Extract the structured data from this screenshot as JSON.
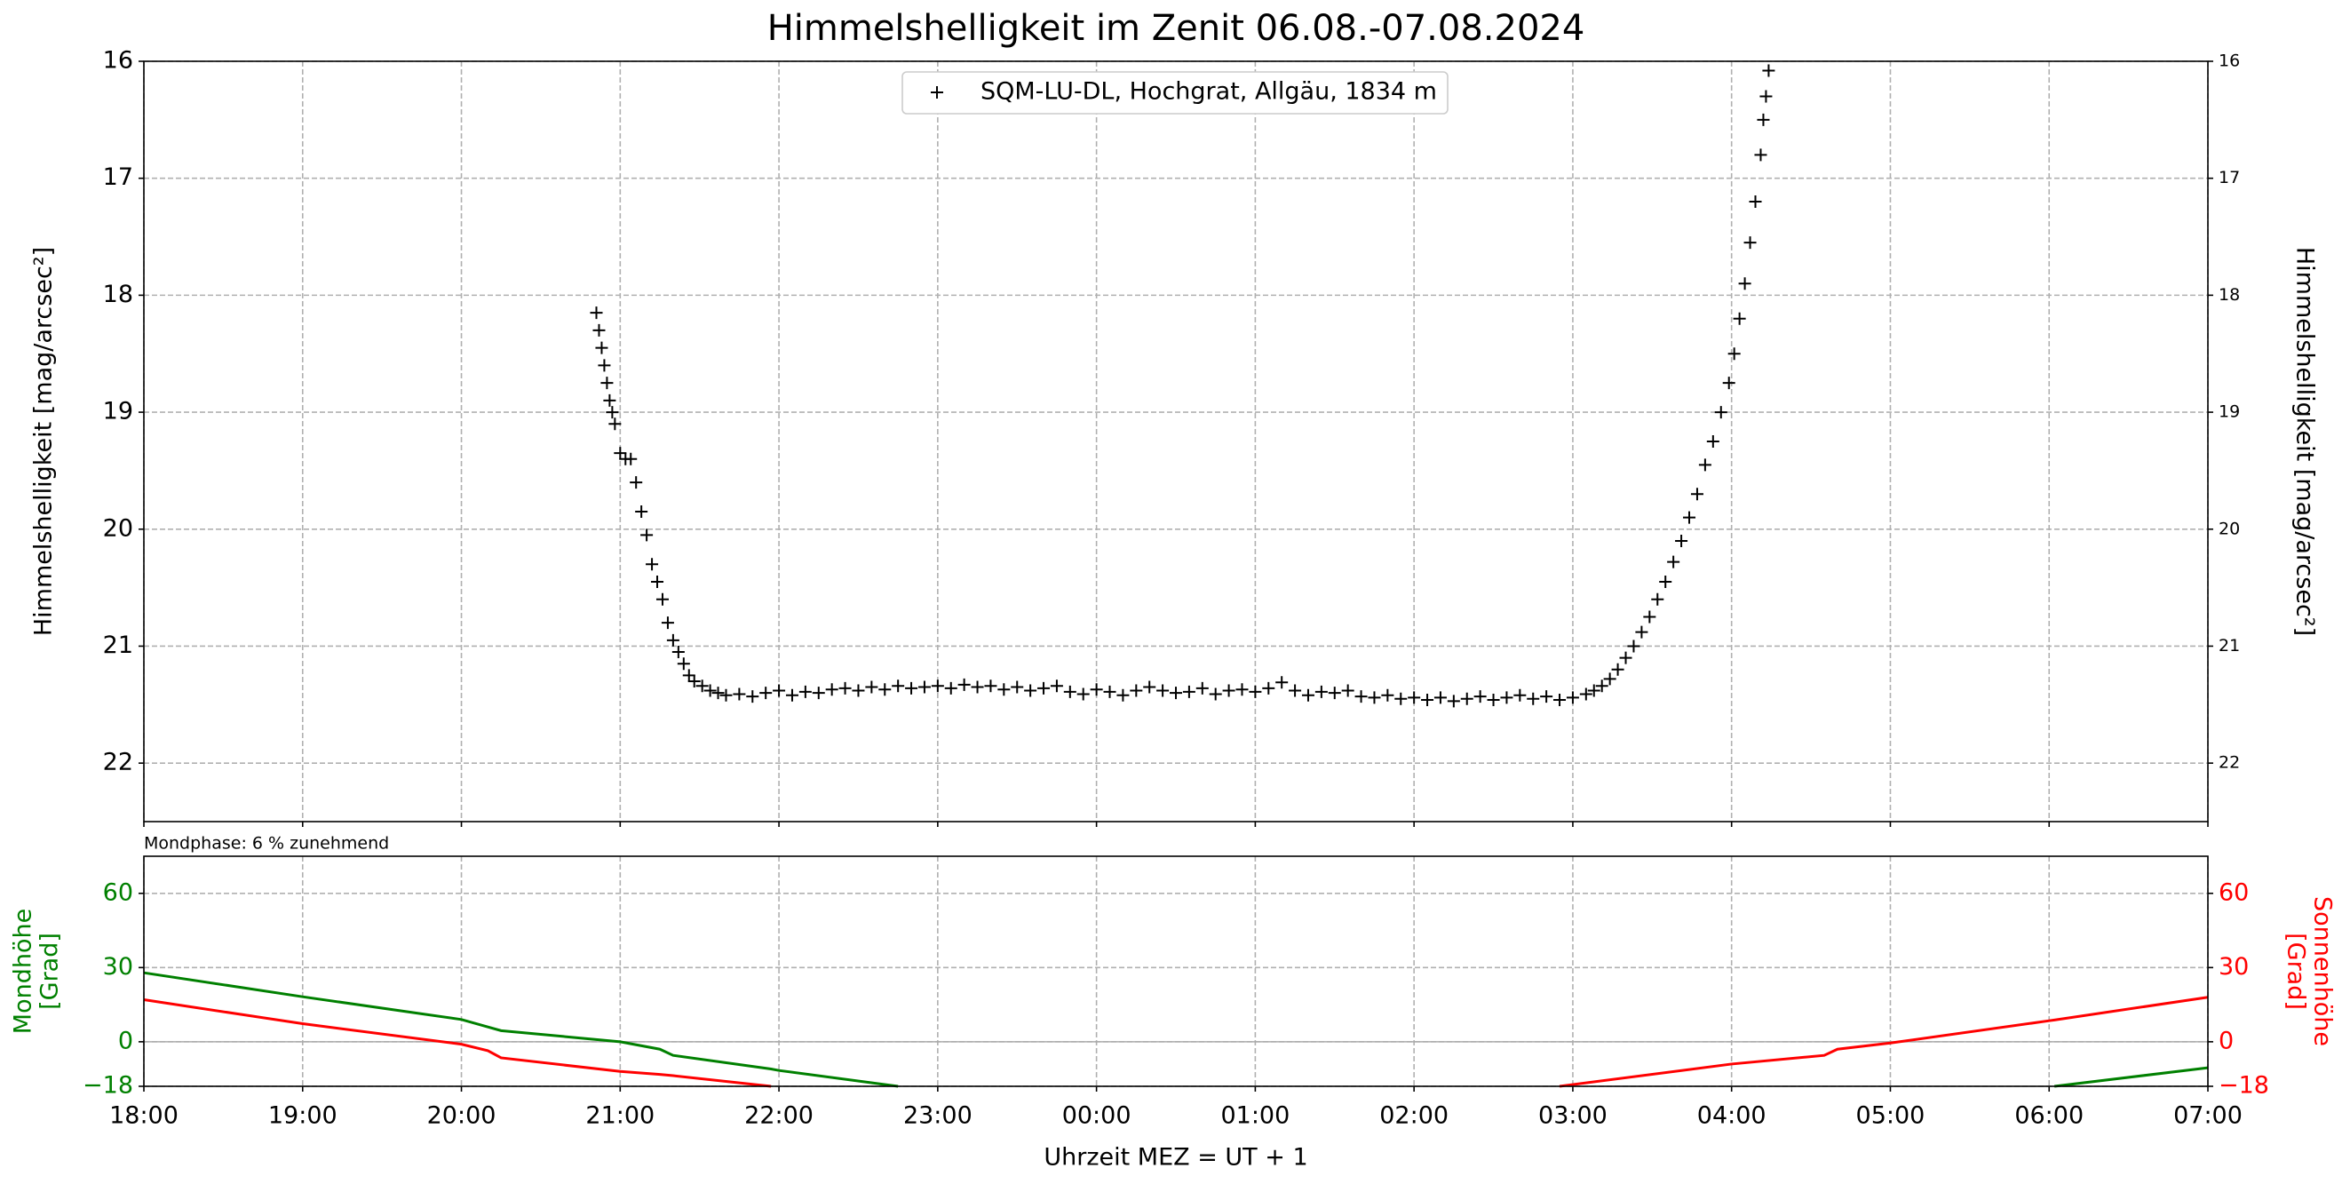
{
  "chart_data": [
    {
      "type": "scatter",
      "title": "Himmelshelligkeit im Zenit 06.08.-07.08.2024",
      "ylabel": "Himmelshelligkeit [mag/arcsec²]",
      "y2label": "Himmelshelligkeit [mag/arcsec²]",
      "xlim": [
        "18:00",
        "07:00"
      ],
      "xticks": [
        "18:00",
        "19:00",
        "20:00",
        "21:00",
        "22:00",
        "23:00",
        "00:00",
        "01:00",
        "02:00",
        "03:00",
        "04:00",
        "05:00",
        "06:00",
        "07:00"
      ],
      "ylim": [
        22.5,
        16
      ],
      "yticks": [
        16,
        17,
        18,
        19,
        20,
        21,
        22
      ],
      "y2lim": [
        22.5,
        16
      ],
      "y2ticks": [
        16,
        17,
        18,
        19,
        20,
        21,
        22
      ],
      "grid": true,
      "legend": "upper center",
      "series": [
        {
          "name": "SQM-LU-DL, Hochgrat, Allgäu, 1834 m",
          "color": "#000000",
          "x": [
            "20:51",
            "20:52",
            "20:53",
            "20:54",
            "20:55",
            "20:56",
            "20:57",
            "20:58",
            "21:00",
            "21:02",
            "21:04",
            "21:06",
            "21:08",
            "21:10",
            "21:12",
            "21:14",
            "21:16",
            "21:18",
            "21:20",
            "21:22",
            "21:24",
            "21:26",
            "21:28",
            "21:31",
            "21:34",
            "21:37",
            "21:40",
            "21:45",
            "21:50",
            "21:55",
            "22:00",
            "22:05",
            "22:10",
            "22:15",
            "22:20",
            "22:25",
            "22:30",
            "22:35",
            "22:40",
            "22:45",
            "22:50",
            "22:55",
            "23:00",
            "23:05",
            "23:10",
            "23:15",
            "23:20",
            "23:25",
            "23:30",
            "23:35",
            "23:40",
            "23:45",
            "23:50",
            "23:55",
            "00:00",
            "00:05",
            "00:10",
            "00:15",
            "00:20",
            "00:25",
            "00:30",
            "00:35",
            "00:40",
            "00:45",
            "00:50",
            "00:55",
            "01:00",
            "01:05",
            "01:10",
            "01:15",
            "01:20",
            "01:25",
            "01:30",
            "01:35",
            "01:40",
            "01:45",
            "01:50",
            "01:55",
            "02:00",
            "02:05",
            "02:10",
            "02:15",
            "02:20",
            "02:25",
            "02:30",
            "02:35",
            "02:40",
            "02:45",
            "02:50",
            "02:55",
            "03:00",
            "03:05",
            "03:08",
            "03:11",
            "03:14",
            "03:17",
            "03:20",
            "03:23",
            "03:26",
            "03:29",
            "03:32",
            "03:35",
            "03:38",
            "03:41",
            "03:44",
            "03:47",
            "03:50",
            "03:53",
            "03:56",
            "03:59",
            "04:01",
            "04:03",
            "04:05",
            "04:07",
            "04:09",
            "04:11",
            "04:12",
            "04:13",
            "04:14"
          ],
          "values": [
            18.15,
            18.3,
            18.45,
            18.6,
            18.75,
            18.9,
            19.0,
            19.1,
            19.35,
            19.4,
            19.4,
            19.6,
            19.85,
            20.05,
            20.3,
            20.45,
            20.6,
            20.8,
            20.95,
            21.05,
            21.15,
            21.25,
            21.3,
            21.34,
            21.38,
            21.4,
            21.42,
            21.41,
            21.43,
            21.4,
            21.38,
            21.42,
            21.39,
            21.4,
            21.37,
            21.36,
            21.38,
            21.35,
            21.37,
            21.34,
            21.36,
            21.35,
            21.34,
            21.36,
            21.33,
            21.35,
            21.34,
            21.37,
            21.35,
            21.38,
            21.36,
            21.34,
            21.39,
            21.41,
            21.37,
            21.39,
            21.42,
            21.38,
            21.35,
            21.38,
            21.4,
            21.39,
            21.36,
            21.41,
            21.38,
            21.37,
            21.39,
            21.36,
            21.31,
            21.38,
            21.42,
            21.39,
            21.4,
            21.38,
            21.43,
            21.44,
            21.42,
            21.45,
            21.44,
            21.46,
            21.44,
            21.47,
            21.45,
            21.43,
            21.46,
            21.44,
            21.42,
            21.45,
            21.43,
            21.46,
            21.44,
            21.41,
            21.38,
            21.34,
            21.28,
            21.2,
            21.1,
            21.0,
            20.88,
            20.75,
            20.6,
            20.45,
            20.28,
            20.1,
            19.9,
            19.7,
            19.45,
            19.25,
            19.0,
            18.75,
            18.5,
            18.2,
            17.9,
            17.55,
            17.2,
            16.8,
            16.5,
            16.3,
            16.08
          ]
        }
      ]
    },
    {
      "type": "line",
      "annotation": "Mondphase: 6 % zunehmend",
      "xlabel": "Uhrzeit MEZ = UT + 1",
      "ylabel": [
        "Mondhöhe",
        "[Grad]"
      ],
      "y2label": [
        "Sonnenhöhe",
        "[Grad]"
      ],
      "xlim": [
        "18:00",
        "07:00"
      ],
      "xticks": [
        "18:00",
        "19:00",
        "20:00",
        "21:00",
        "22:00",
        "23:00",
        "00:00",
        "01:00",
        "02:00",
        "03:00",
        "04:00",
        "05:00",
        "06:00",
        "07:00"
      ],
      "ylim": [
        -18,
        75
      ],
      "yticks": [
        {
          "value": -18,
          "label": "−18"
        },
        0,
        30,
        60
      ],
      "y2lim": [
        -18,
        75
      ],
      "y2ticks": [
        {
          "value": -18,
          "label": "−18"
        },
        0,
        30,
        60
      ],
      "grid": true,
      "x": [
        "18:00",
        "19:00",
        "20:00",
        "20:10",
        "20:15",
        "21:00",
        "21:15",
        "21:20",
        "21:57",
        "22:00",
        "22:45",
        "02:55",
        "04:00",
        "04:35",
        "04:40",
        "05:00",
        "06:00",
        "06:02",
        "07:00"
      ],
      "series": [
        {
          "color": "#008000",
          "values": [
            27.9,
            18.2,
            9,
            6,
            4.5,
            0,
            -3,
            -5.5,
            -11,
            -11.6,
            -18,
            null,
            null,
            null,
            null,
            null,
            null,
            -18,
            -10.5
          ]
        },
        {
          "color": "#ff0000",
          "axis": "y2",
          "values": [
            17,
            7.3,
            -1,
            -3.6,
            -6.5,
            -12,
            -13.2,
            -13.7,
            -18,
            null,
            null,
            -18,
            -9,
            -5.5,
            -3,
            -0.5,
            8.5,
            8.8,
            18
          ]
        }
      ]
    }
  ]
}
